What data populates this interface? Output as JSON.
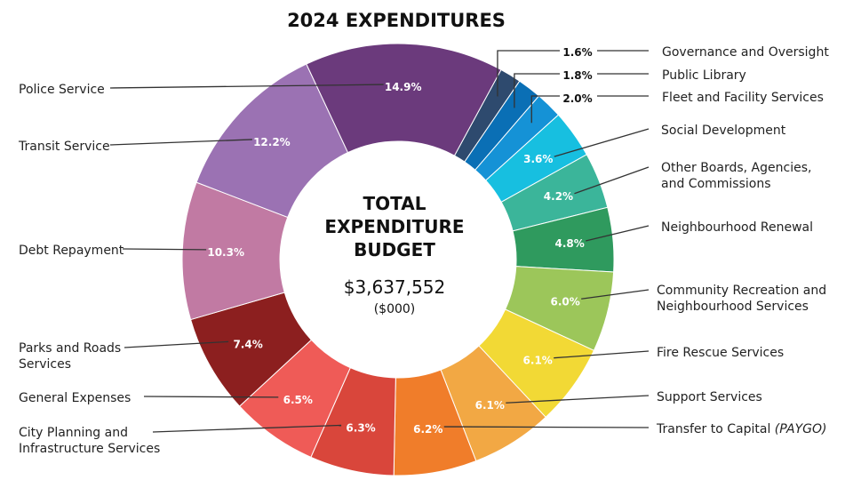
{
  "chart_data": {
    "type": "pie",
    "title": "2024 EXPENDITURES",
    "center_title_lines": [
      "TOTAL",
      "EXPENDITURE",
      "BUDGET"
    ],
    "center_total": "$3,637,552",
    "center_unit": "($000)",
    "slices": [
      {
        "name": "Governance and Oversight",
        "value": 1.6,
        "label": "1.6%",
        "color": "#2e4a6e"
      },
      {
        "name": "Public Library",
        "value": 1.8,
        "label": "1.8%",
        "color": "#0a6fb5"
      },
      {
        "name": "Fleet and Facility Services",
        "value": 2.0,
        "label": "2.0%",
        "color": "#1592d6"
      },
      {
        "name": "Social Development",
        "value": 3.6,
        "label": "3.6%",
        "color": "#17bfe0"
      },
      {
        "name": "Other Boards, Agencies, and Commissions",
        "value": 4.2,
        "label": "4.2%",
        "color": "#3bb59a"
      },
      {
        "name": "Neighbourhood Renewal",
        "value": 4.8,
        "label": "4.8%",
        "color": "#2f9a5e"
      },
      {
        "name": "Community Recreation and Neighbourhood Services",
        "value": 6.0,
        "label": "6.0%",
        "color": "#9cc65a"
      },
      {
        "name": "Fire Rescue Services",
        "value": 6.1,
        "label": "6.1%",
        "color": "#f2d935"
      },
      {
        "name": "Support Services",
        "value": 6.1,
        "label": "6.1%",
        "color": "#f2a844"
      },
      {
        "name": "Transfer to Capital (PAYGO)",
        "value": 6.2,
        "label": "6.2%",
        "color": "#f07d2a"
      },
      {
        "name": "City Planning and Infrastructure Services",
        "value": 6.3,
        "label": "6.3%",
        "color": "#d9463b"
      },
      {
        "name": "General Expenses",
        "value": 6.5,
        "label": "6.5%",
        "color": "#ef5b57"
      },
      {
        "name": "Parks and Roads Services",
        "value": 7.4,
        "label": "7.4%",
        "color": "#8c1f1f"
      },
      {
        "name": "Debt Repayment",
        "value": 10.3,
        "label": "10.3%",
        "color": "#c17aa3"
      },
      {
        "name": "Transit Service",
        "value": 12.2,
        "label": "12.2%",
        "color": "#9b72b3"
      },
      {
        "name": "Police Service",
        "value": 14.9,
        "label": "14.9%",
        "color": "#6b3a7c"
      }
    ]
  }
}
